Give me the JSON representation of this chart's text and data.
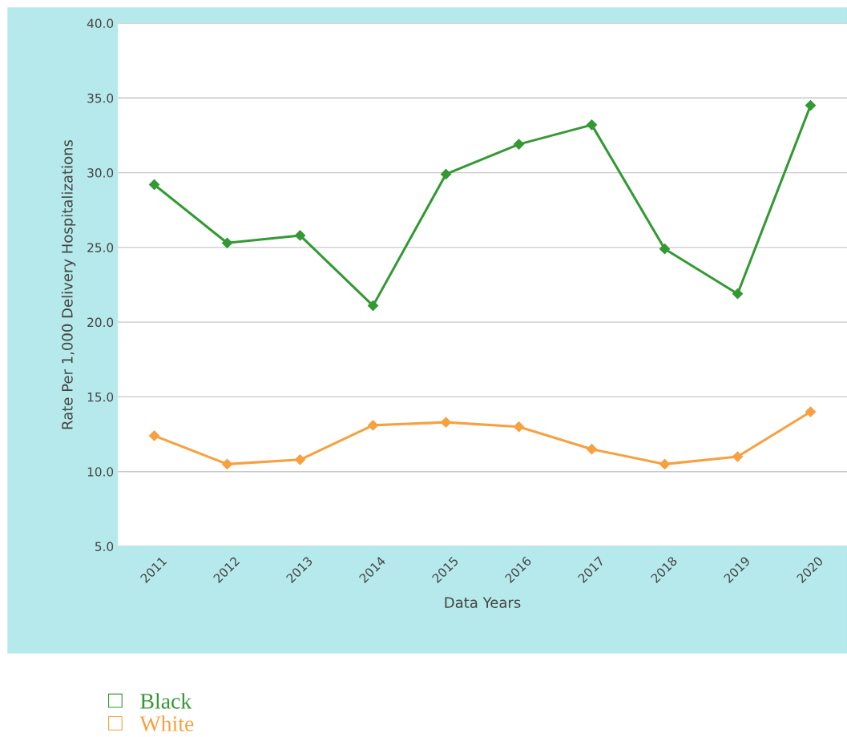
{
  "chart_data": {
    "type": "line",
    "xlabel": "Data Years",
    "ylabel": "Rate Per 1,000 Delivery Hospitalizations",
    "categories": [
      "2011",
      "2012",
      "2013",
      "2014",
      "2015",
      "2016",
      "2017",
      "2018",
      "2019",
      "2020"
    ],
    "series": [
      {
        "name": "Black",
        "color": "#339933",
        "values": [
          29.2,
          25.3,
          25.8,
          21.1,
          29.9,
          31.9,
          33.2,
          24.9,
          21.9,
          34.5
        ]
      },
      {
        "name": "White",
        "color": "#f7a040",
        "values": [
          12.4,
          10.5,
          10.8,
          13.1,
          13.3,
          13.0,
          11.5,
          10.5,
          11.0,
          14.0
        ]
      }
    ],
    "ylim": [
      5,
      40
    ],
    "yticks": [
      {
        "value": 5,
        "label": "5.0"
      },
      {
        "value": 10,
        "label": "10.0"
      },
      {
        "value": 15,
        "label": "15.0"
      },
      {
        "value": 20,
        "label": "20.0"
      },
      {
        "value": 25,
        "label": "25.0"
      },
      {
        "value": 30,
        "label": "30.0"
      },
      {
        "value": 35,
        "label": "35.0"
      },
      {
        "value": 40,
        "label": "40.0"
      }
    ],
    "grid": "y",
    "legend": "bottom",
    "marker": "diamond",
    "line_style": "solid"
  }
}
